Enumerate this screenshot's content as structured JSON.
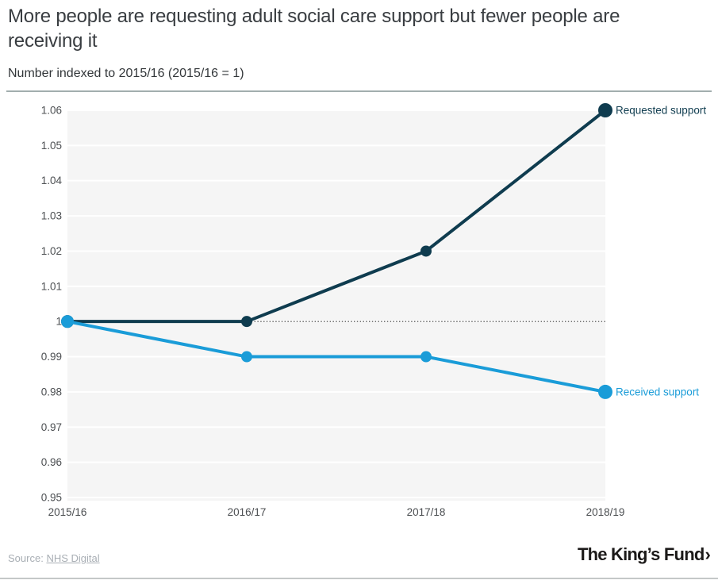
{
  "header": {
    "title": "More people are requesting adult social care support but fewer people are receiving it",
    "subtitle": "Number indexed to 2015/16 (2015/16 = 1)"
  },
  "chart_data": {
    "type": "line",
    "categories": [
      "2015/16",
      "2016/17",
      "2017/18",
      "2018/19"
    ],
    "series": [
      {
        "name": "Requested support",
        "values": [
          1,
          1,
          1.02,
          1.06
        ],
        "color": "#0f3c4f"
      },
      {
        "name": "Received support",
        "values": [
          1,
          0.99,
          0.99,
          0.98
        ],
        "color": "#1a9cd8"
      }
    ],
    "title": "More people are requesting adult social care support but fewer people are receiving it",
    "subtitle": "Number indexed to 2015/16 (2015/16 = 1)",
    "xlabel": "",
    "ylabel": "",
    "ylim": [
      0.95,
      1.06
    ],
    "yticks": [
      1.06,
      1.05,
      1.04,
      1.03,
      1.02,
      1.01,
      1,
      0.99,
      0.98,
      0.97,
      0.96,
      0.95
    ],
    "ytick_labels": [
      "1.06",
      "1.05",
      "1.04",
      "1.03",
      "1.02",
      "1.01",
      "1",
      "0.99",
      "0.98",
      "0.97",
      "0.96",
      "0.95"
    ],
    "reference_line": 1,
    "grid": true,
    "legend_position": "line-end-labels",
    "plot_bg": "#f5f5f5",
    "grid_color": "#ffffff",
    "reference_line_color": "#3d3d3d",
    "tick_color": "#4c4f52"
  },
  "footer": {
    "source_label": "Source:",
    "source_link": "NHS Digital",
    "logo_text": "The King’s Fund",
    "logo_chevron": "›"
  }
}
